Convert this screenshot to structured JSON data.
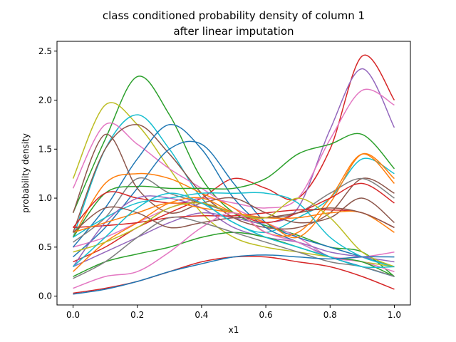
{
  "chart_data": {
    "type": "line",
    "title_lines": [
      "class conditioned probability density of column 1",
      "after linear imputation"
    ],
    "xlabel": "x1",
    "ylabel": "probability density",
    "xlim": [
      -0.05,
      1.05
    ],
    "ylim": [
      -0.09,
      2.6
    ],
    "x_ticks": [
      0.0,
      0.2,
      0.4,
      0.6,
      0.8,
      1.0
    ],
    "x_tick_labels": [
      "0.0",
      "0.2",
      "0.4",
      "0.6",
      "0.8",
      "1.0"
    ],
    "y_ticks": [
      0.0,
      0.5,
      1.0,
      1.5,
      2.0,
      2.5
    ],
    "y_tick_labels": [
      "0.0",
      "0.5",
      "1.0",
      "1.5",
      "2.0",
      "2.5"
    ],
    "grid": false,
    "x": [
      0.0,
      0.1,
      0.2,
      0.3,
      0.4,
      0.5,
      0.6,
      0.7,
      0.8,
      0.9,
      1.0
    ],
    "series": [
      {
        "color": "#2ca02c",
        "values": [
          0.85,
          1.6,
          2.24,
          1.85,
          1.2,
          0.85,
          0.72,
          0.62,
          0.5,
          0.45,
          0.2
        ]
      },
      {
        "color": "#d62728",
        "values": [
          0.35,
          0.5,
          0.7,
          0.85,
          1.0,
          1.2,
          1.1,
          1.0,
          1.5,
          2.45,
          2.0
        ]
      },
      {
        "color": "#9467bd",
        "values": [
          0.3,
          0.45,
          0.6,
          0.75,
          0.85,
          0.8,
          0.75,
          0.9,
          1.7,
          2.32,
          1.72
        ]
      },
      {
        "color": "#e377c2",
        "values": [
          0.5,
          0.6,
          0.75,
          0.9,
          1.0,
          0.95,
          0.9,
          1.0,
          1.6,
          2.1,
          1.95
        ]
      },
      {
        "color": "#bcbd22",
        "values": [
          1.2,
          1.95,
          1.75,
          1.3,
          0.85,
          0.6,
          0.5,
          0.45,
          0.4,
          0.35,
          0.3
        ]
      },
      {
        "color": "#17becf",
        "values": [
          0.6,
          1.5,
          1.85,
          1.5,
          1.0,
          0.75,
          0.65,
          0.8,
          1.0,
          1.4,
          1.25
        ]
      },
      {
        "color": "#e377c2",
        "values": [
          1.1,
          1.75,
          1.55,
          1.3,
          1.1,
          0.9,
          0.75,
          0.6,
          0.4,
          0.35,
          0.25
        ]
      },
      {
        "color": "#8c564b",
        "values": [
          0.65,
          1.5,
          1.75,
          1.45,
          1.05,
          0.8,
          0.7,
          0.7,
          0.85,
          1.2,
          1.05
        ]
      },
      {
        "color": "#1f77b4",
        "values": [
          0.5,
          0.9,
          1.4,
          1.75,
          1.5,
          1.0,
          0.7,
          0.55,
          0.4,
          0.3,
          0.2
        ]
      },
      {
        "color": "#1f77b4",
        "values": [
          0.4,
          0.7,
          1.1,
          1.5,
          1.55,
          1.15,
          0.75,
          0.6,
          0.5,
          0.4,
          0.3
        ]
      },
      {
        "color": "#7f7f7f",
        "values": [
          0.55,
          0.8,
          1.2,
          1.05,
          0.95,
          0.85,
          0.8,
          0.85,
          1.05,
          1.2,
          1.0
        ]
      },
      {
        "color": "#ff7f0e",
        "values": [
          0.6,
          1.15,
          1.25,
          1.2,
          1.05,
          0.9,
          0.65,
          0.65,
          1.0,
          1.45,
          1.15
        ]
      },
      {
        "color": "#2ca02c",
        "values": [
          0.6,
          1.05,
          1.12,
          1.1,
          1.1,
          1.1,
          1.2,
          1.45,
          1.55,
          1.65,
          1.3
        ]
      },
      {
        "color": "#8c564b",
        "values": [
          0.85,
          1.65,
          1.1,
          0.85,
          0.95,
          1.0,
          0.85,
          0.75,
          0.8,
          1.0,
          0.75
        ]
      },
      {
        "color": "#ff7f0e",
        "values": [
          0.25,
          0.55,
          0.75,
          0.95,
          1.0,
          0.85,
          0.75,
          0.6,
          0.95,
          1.45,
          1.2
        ]
      },
      {
        "color": "#d62728",
        "values": [
          0.7,
          0.72,
          0.75,
          0.8,
          0.82,
          0.82,
          0.85,
          0.88,
          0.88,
          0.85,
          0.7
        ]
      },
      {
        "color": "#17becf",
        "values": [
          0.6,
          0.8,
          0.95,
          1.0,
          1.05,
          1.05,
          1.05,
          0.95,
          0.6,
          0.4,
          0.3
        ]
      },
      {
        "color": "#d62728",
        "values": [
          0.7,
          1.05,
          1.0,
          0.95,
          0.95,
          0.85,
          0.75,
          0.85,
          1.0,
          1.15,
          0.95
        ]
      },
      {
        "color": "#9467bd",
        "values": [
          0.3,
          0.75,
          1.0,
          1.0,
          0.9,
          0.7,
          0.6,
          0.55,
          0.45,
          0.4,
          0.35
        ]
      },
      {
        "color": "#ff7f0e",
        "values": [
          0.65,
          0.75,
          0.85,
          0.95,
          0.9,
          0.85,
          0.8,
          0.8,
          0.85,
          0.85,
          0.65
        ]
      },
      {
        "color": "#8c564b",
        "values": [
          0.65,
          0.9,
          0.85,
          0.7,
          0.75,
          0.8,
          0.8,
          0.85,
          0.9,
          0.85,
          0.7
        ]
      },
      {
        "color": "#bcbd22",
        "values": [
          0.45,
          0.55,
          0.7,
          0.9,
          0.95,
          0.85,
          0.8,
          1.0,
          0.8,
          0.45,
          0.3
        ]
      },
      {
        "color": "#2ca02c",
        "values": [
          0.2,
          0.35,
          0.43,
          0.5,
          0.6,
          0.65,
          0.6,
          0.5,
          0.4,
          0.35,
          0.2
        ]
      },
      {
        "color": "#e377c2",
        "values": [
          0.08,
          0.2,
          0.25,
          0.45,
          0.7,
          0.85,
          0.65,
          0.55,
          0.4,
          0.4,
          0.45
        ]
      },
      {
        "color": "#d62728",
        "values": [
          0.03,
          0.08,
          0.15,
          0.25,
          0.35,
          0.4,
          0.4,
          0.35,
          0.3,
          0.2,
          0.07
        ]
      },
      {
        "color": "#7f7f7f",
        "values": [
          0.18,
          0.35,
          0.6,
          0.8,
          0.75,
          0.65,
          0.55,
          0.45,
          0.35,
          0.3,
          0.2
        ]
      },
      {
        "color": "#17becf",
        "values": [
          0.3,
          0.6,
          0.9,
          1.05,
          0.95,
          0.75,
          0.6,
          0.5,
          0.4,
          0.3,
          0.3
        ]
      },
      {
        "color": "#1f77b4",
        "values": [
          0.02,
          0.07,
          0.15,
          0.25,
          0.33,
          0.4,
          0.42,
          0.4,
          0.38,
          0.4,
          0.4
        ]
      }
    ]
  }
}
